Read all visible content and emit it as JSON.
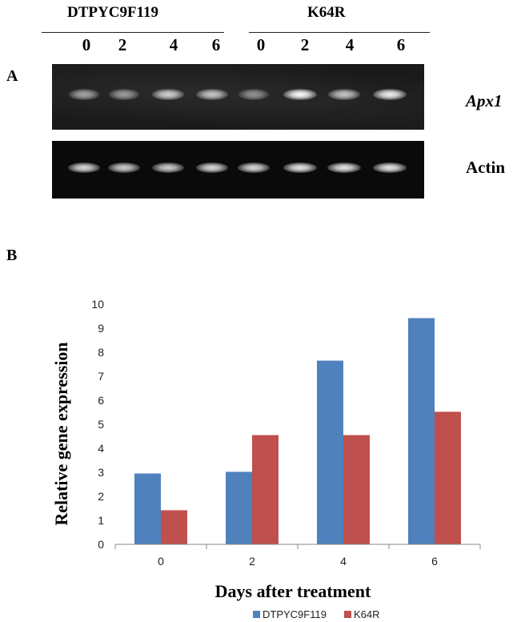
{
  "panel_a": {
    "letter": "A",
    "groups": [
      {
        "name": "DTPYC9F119",
        "lanes": [
          "0",
          "2",
          "4",
          "6"
        ]
      },
      {
        "name": "K64R",
        "lanes": [
          "0",
          "2",
          "4",
          "6"
        ]
      }
    ],
    "gels": [
      {
        "label": "Apx1",
        "italic": true,
        "band_intensity": [
          0.6,
          0.55,
          0.8,
          0.75,
          0.5,
          1.0,
          0.75,
          0.95
        ]
      },
      {
        "label": "Actin",
        "italic": false,
        "band_intensity": [
          0.85,
          0.8,
          0.8,
          0.85,
          0.85,
          0.9,
          0.9,
          0.9
        ]
      }
    ]
  },
  "panel_b": {
    "letter": "B"
  },
  "colors": {
    "series_1": "#4f81bd",
    "series_2": "#c0504d",
    "axis": "#888888"
  },
  "chart_data": {
    "type": "bar",
    "categories": [
      "0",
      "2",
      "4",
      "6"
    ],
    "series": [
      {
        "name": "DTPYC9F119",
        "values": [
          2.95,
          3.02,
          7.65,
          9.42
        ]
      },
      {
        "name": "K64R",
        "values": [
          1.42,
          4.55,
          4.55,
          5.52
        ]
      }
    ],
    "xlabel": "Days after treatment",
    "ylabel": "Relative gene expression",
    "ylim": [
      0,
      10
    ],
    "yticks": [
      "0",
      "1",
      "2",
      "3",
      "4",
      "5",
      "6",
      "7",
      "8",
      "9",
      "10"
    ],
    "grid": false,
    "legend_position": "bottom"
  }
}
